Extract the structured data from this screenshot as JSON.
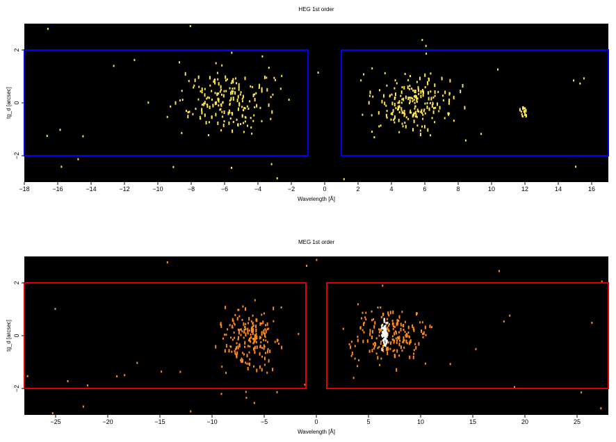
{
  "chart_data": [
    {
      "type": "heatmap",
      "title": "HEG 1st order",
      "xlabel": "Wavelength [Å]",
      "ylabel": "tg_d [arcsec]",
      "xlim": [
        -18,
        17
      ],
      "ylim": [
        -3,
        3
      ],
      "xticks": [
        -18,
        -16,
        -14,
        -12,
        -10,
        -8,
        -6,
        -4,
        -2,
        0,
        2,
        4,
        6,
        8,
        10,
        12,
        14,
        16
      ],
      "xtick_labels": [
        "−18",
        "−16",
        "−14",
        "−12",
        "−10",
        "−8",
        "−6",
        "−4",
        "−2",
        "0",
        "2",
        "4",
        "6",
        "8",
        "10",
        "12",
        "14",
        "16"
      ],
      "yticks": [
        -2,
        0,
        2
      ],
      "ytick_labels": [
        "−2",
        "0",
        "2"
      ],
      "background_color": "#000000",
      "count_color": "#ffe64d",
      "regions": [
        {
          "x": [
            -18,
            -1
          ],
          "y": [
            -2,
            2
          ]
        },
        {
          "x": [
            1,
            17
          ],
          "y": [
            -2,
            2
          ]
        }
      ],
      "region_color": "#0000ff",
      "event_clusters": [
        {
          "x_range": [
            -10,
            -1.6
          ],
          "y_range": [
            -1.6,
            1.9
          ],
          "density": "high"
        },
        {
          "x_range": [
            1.5,
            9.2
          ],
          "y_range": [
            -1.6,
            1.6
          ],
          "density": "high"
        },
        {
          "x_range": [
            11.4,
            12.4
          ],
          "y_range": [
            -0.8,
            0.2
          ],
          "density": "low"
        }
      ],
      "grid": false,
      "legend": "none"
    },
    {
      "type": "heatmap",
      "title": "MEG 1st order",
      "xlabel": "Wavelength [Å]",
      "ylabel": "tg_d [arcsec]",
      "xlim": [
        -28,
        28
      ],
      "ylim": [
        -3,
        3
      ],
      "xticks": [
        -25,
        -20,
        -15,
        -10,
        -5,
        0,
        5,
        10,
        15,
        20,
        25
      ],
      "xtick_labels": [
        "−25",
        "−20",
        "−15",
        "−10",
        "−5",
        "0",
        "5",
        "10",
        "15",
        "20",
        "25"
      ],
      "yticks": [
        -2,
        0,
        2
      ],
      "ytick_labels": [
        "−2",
        "0",
        "2"
      ],
      "background_color": "#000000",
      "count_color": "#ff8c1a",
      "peak_color": "#ffffff",
      "regions": [
        {
          "x": [
            -28,
            -1
          ],
          "y": [
            -2,
            2
          ]
        },
        {
          "x": [
            1,
            28
          ],
          "y": [
            -2,
            2
          ]
        }
      ],
      "region_color": "#e00000",
      "event_clusters": [
        {
          "x_range": [
            -10.5,
            -2.5
          ],
          "y_range": [
            -1.6,
            1.6
          ],
          "density": "high"
        },
        {
          "x_range": [
            2,
            12
          ],
          "y_range": [
            -1.5,
            1.5
          ],
          "density": "high"
        },
        {
          "x_range": [
            6,
            7
          ],
          "y_range": [
            -0.6,
            0.8
          ],
          "density": "peak"
        }
      ],
      "grid": false,
      "legend": "none"
    }
  ]
}
